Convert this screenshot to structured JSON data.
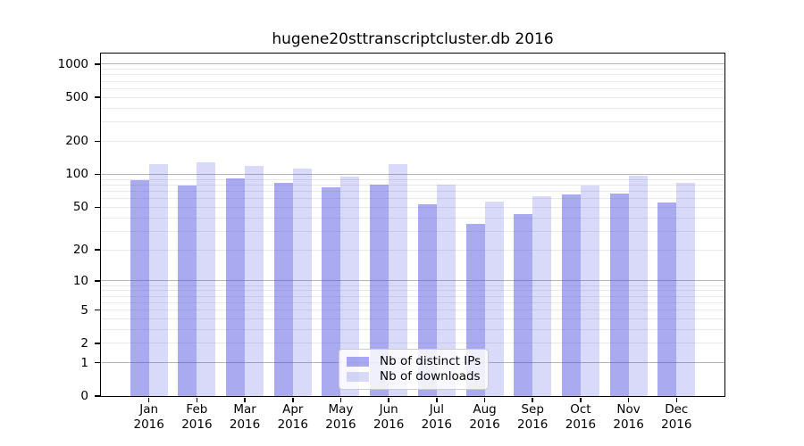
{
  "title": "hugene20sttranscriptcluster.db 2016",
  "chart_data": {
    "type": "bar",
    "title": "hugene20sttranscriptcluster.db 2016",
    "categories": [
      "Jan",
      "Feb",
      "Mar",
      "Apr",
      "May",
      "Jun",
      "Jul",
      "Aug",
      "Sep",
      "Oct",
      "Nov",
      "Dec"
    ],
    "year_label": "2016",
    "series": [
      {
        "name": "Nb of distinct IPs",
        "color": "rgba(75,75,225,0.47)",
        "values": [
          89,
          79,
          92,
          83,
          76,
          81,
          53,
          35,
          43,
          65,
          67,
          55
        ]
      },
      {
        "name": "Nb of downloads",
        "color": "rgba(75,75,225,0.21)",
        "values": [
          125,
          129,
          119,
          112,
          96,
          125,
          80,
          56,
          63,
          79,
          98,
          83
        ]
      }
    ],
    "y_ticks": [
      0,
      1,
      2,
      5,
      10,
      20,
      50,
      100,
      200,
      500,
      1000
    ],
    "y_scale": "log10(value+1)",
    "ylim": [
      0,
      1250
    ],
    "grid": true,
    "legend_position": "lower center"
  },
  "colors": {
    "bar_dark": "rgba(75,75,225,0.47)",
    "bar_light": "rgba(75,75,225,0.21)",
    "bar_dark_flat": "#aaaaf0",
    "bar_light_flat": "#dbdbf8",
    "grid_major": "#b5b5b5",
    "grid_minor": "#e9e9e9",
    "spine": "#000000",
    "background": "#ffffff"
  }
}
